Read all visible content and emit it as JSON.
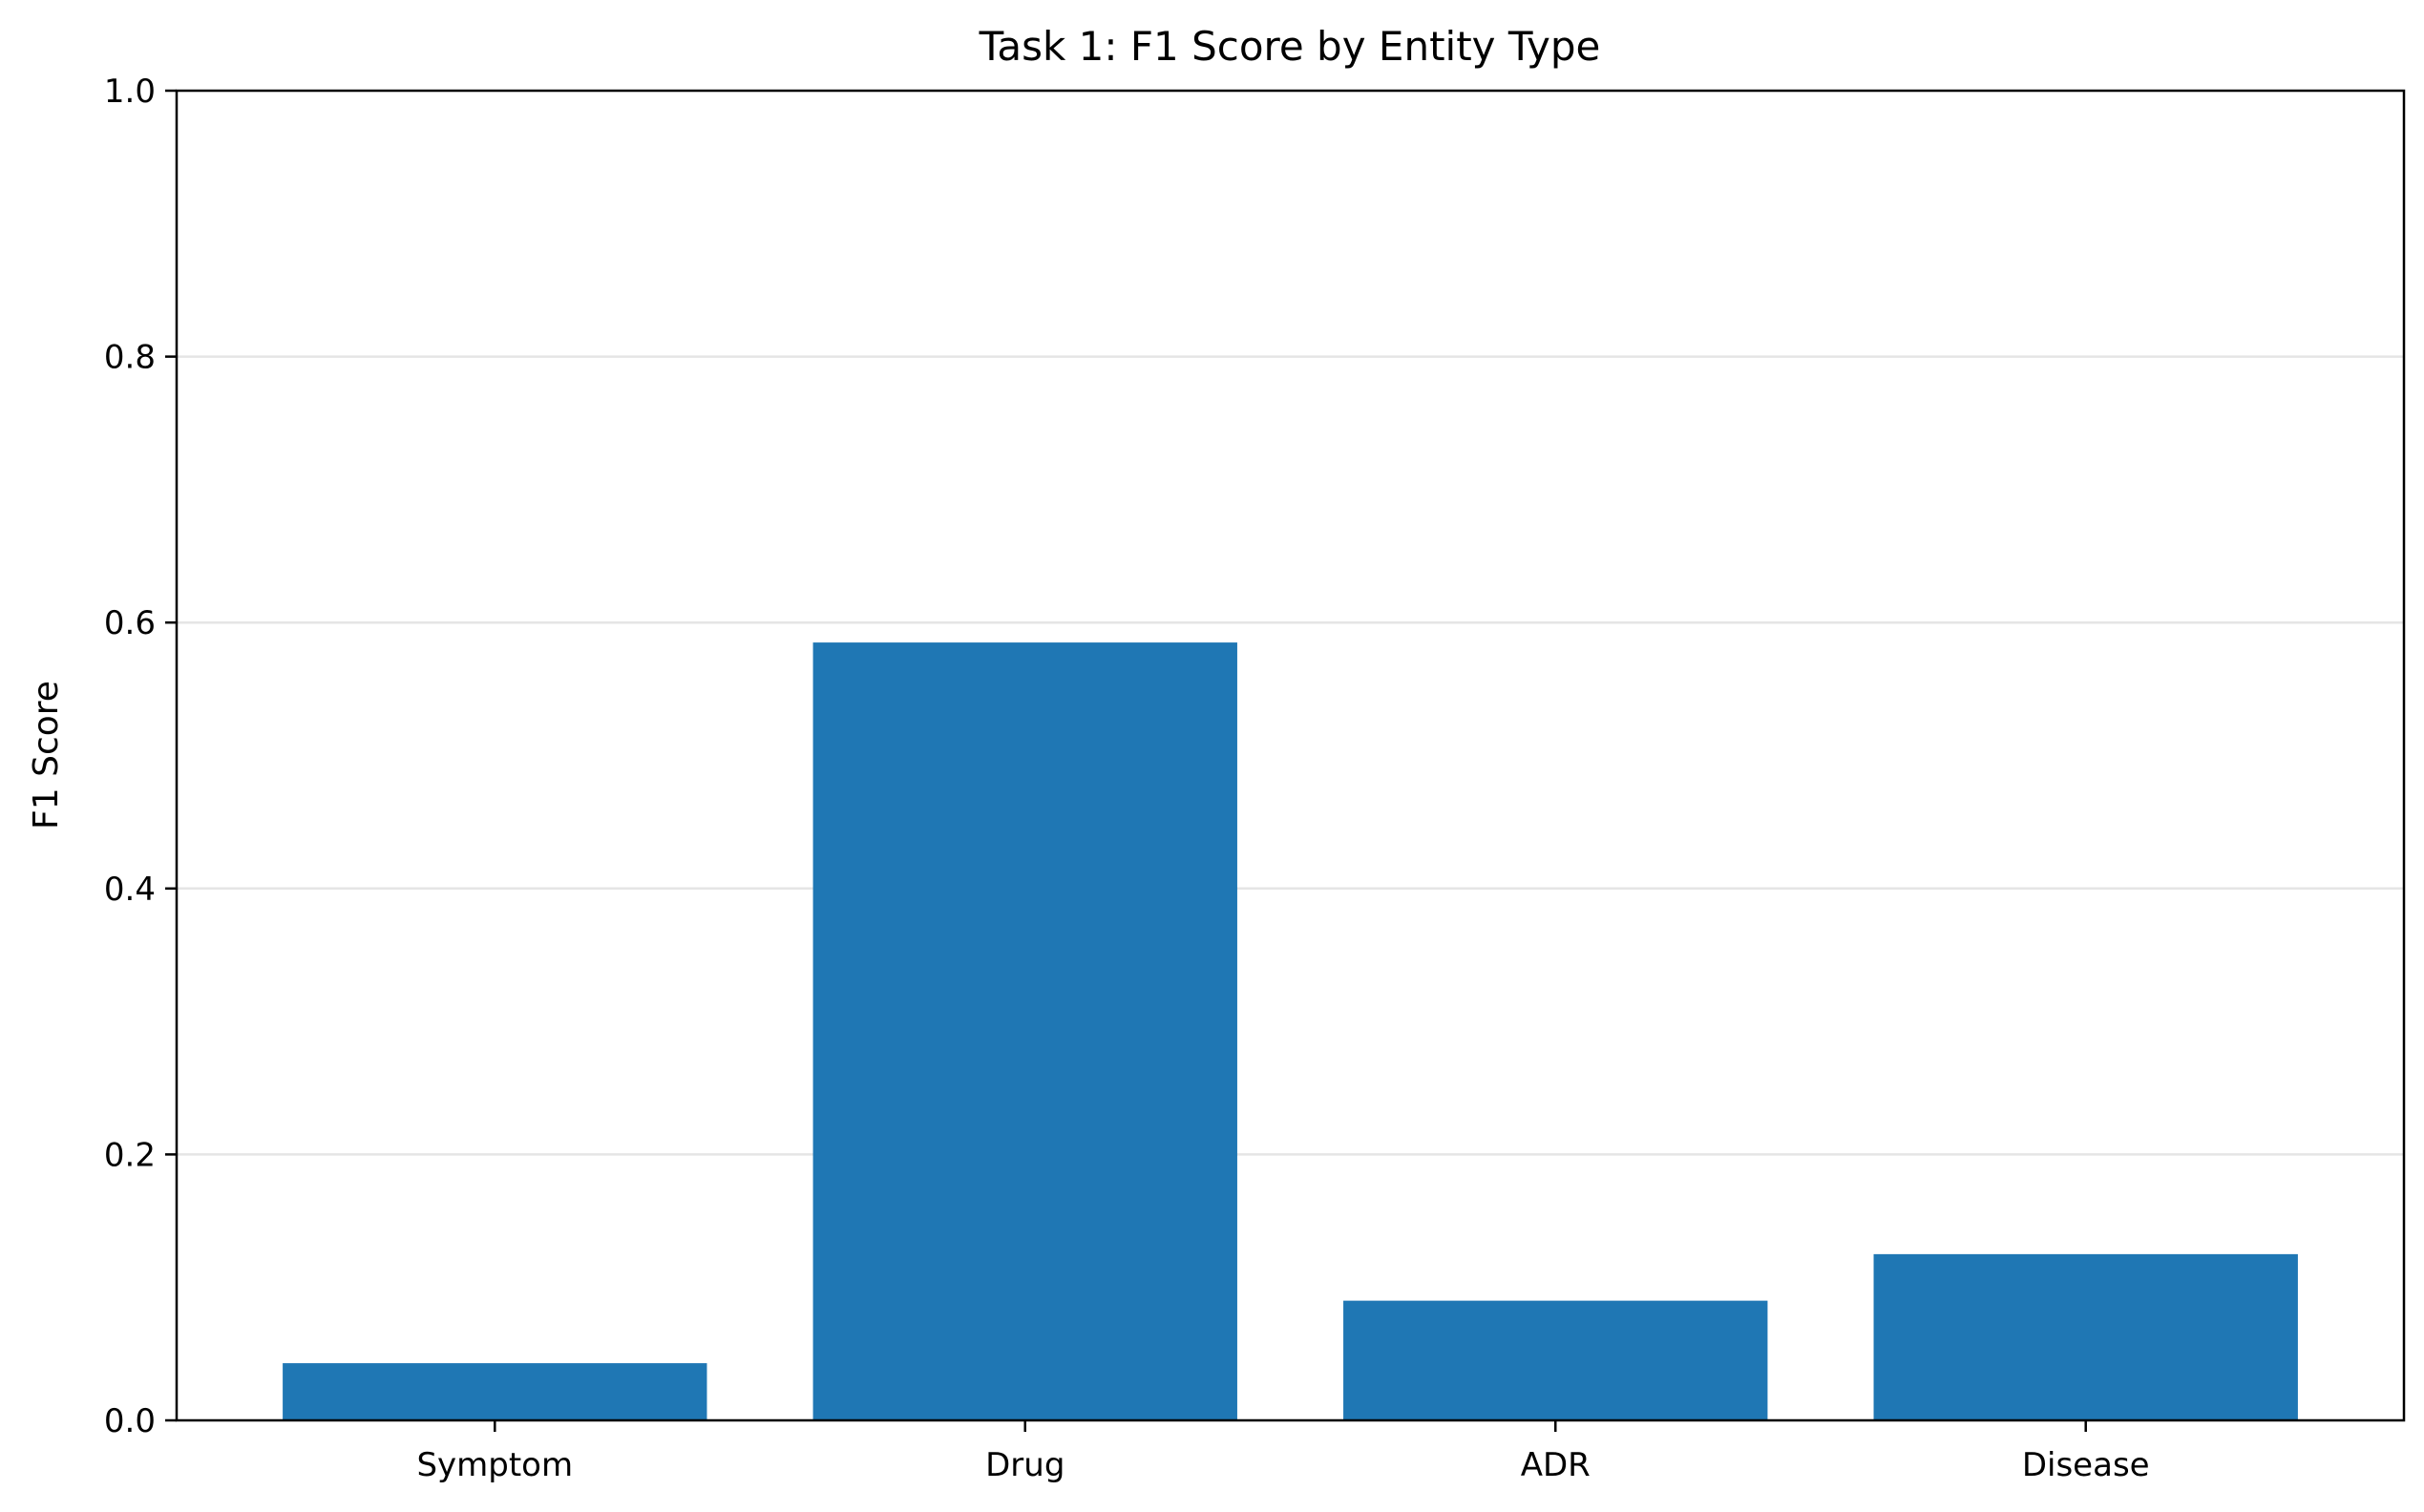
{
  "chart_data": {
    "type": "bar",
    "title": "Task 1: F1 Score by Entity Type",
    "xlabel": "",
    "ylabel": "F1 Score",
    "categories": [
      "Symptom",
      "Drug",
      "ADR",
      "Disease"
    ],
    "values": [
      0.043,
      0.585,
      0.09,
      0.125
    ],
    "ylim": [
      0,
      1.0
    ],
    "yticks": [
      "0.0",
      "0.2",
      "0.4",
      "0.6",
      "0.8",
      "1.0"
    ],
    "grid": "y-axis horizontal lines",
    "bar_color": "#1f77b4",
    "grid_color": "#e5e5e5"
  }
}
